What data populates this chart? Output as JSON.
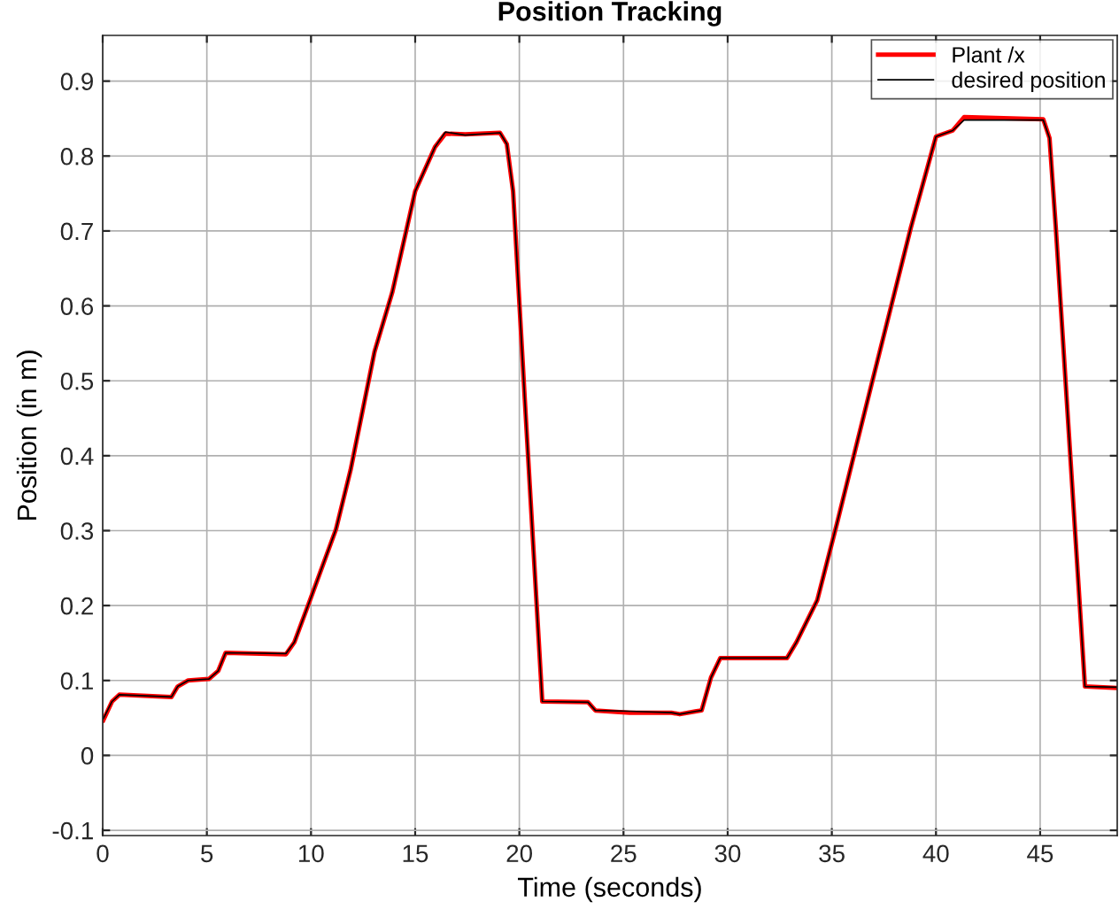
{
  "chart_data": {
    "type": "line",
    "title": "Position Tracking",
    "xlabel": "Time (seconds)",
    "ylabel": "Position (in m)",
    "xlim": [
      0,
      48.7
    ],
    "ylim": [
      -0.107,
      0.961
    ],
    "xticks": [
      0,
      5,
      10,
      15,
      20,
      25,
      30,
      35,
      40,
      45
    ],
    "yticks": [
      {
        "value": -0.1,
        "label": "-0.1"
      },
      0,
      0.1,
      0.2,
      0.3,
      0.4,
      0.5,
      0.6,
      0.7,
      0.8,
      0.9
    ],
    "grid": true,
    "legend": "top right",
    "marker": "none",
    "line_style": "solid",
    "x": [
      0.03,
      0.45,
      0.8,
      3.3,
      3.6,
      4.1,
      5.1,
      5.55,
      5.9,
      8.8,
      9.2,
      9.95,
      11.2,
      11.9,
      13.05,
      13.9,
      15.0,
      15.95,
      16.45,
      17.4,
      19.07,
      19.4,
      19.7,
      20.26,
      21.1,
      23.3,
      23.65,
      25.3,
      27.3,
      27.7,
      28.5,
      28.75,
      29.2,
      29.65,
      32.85,
      33.3,
      34.3,
      35.25,
      36.95,
      38.8,
      40.0,
      40.8,
      41.35,
      45.15,
      45.45,
      45.75,
      47.15,
      48.7
    ],
    "series": [
      {
        "name": "Plant /x",
        "color": "#ff0000",
        "values": [
          0.047,
          0.072,
          0.081,
          0.078,
          0.092,
          0.1,
          0.102,
          0.113,
          0.137,
          0.135,
          0.151,
          0.207,
          0.302,
          0.381,
          0.539,
          0.618,
          0.753,
          0.812,
          0.83,
          0.829,
          0.831,
          0.816,
          0.753,
          0.476,
          0.072,
          0.071,
          0.06,
          0.057,
          0.057,
          0.055,
          0.059,
          0.06,
          0.104,
          0.13,
          0.13,
          0.151,
          0.207,
          0.31,
          0.5,
          0.705,
          0.826,
          0.834,
          0.852,
          0.849,
          0.824,
          0.705,
          0.092,
          0.09
        ]
      },
      {
        "name": "desired position",
        "color": "#000000",
        "values": [
          0.049,
          0.072,
          0.081,
          0.078,
          0.092,
          0.1,
          0.102,
          0.113,
          0.137,
          0.136,
          0.151,
          0.207,
          0.302,
          0.381,
          0.539,
          0.618,
          0.753,
          0.812,
          0.832,
          0.828,
          0.831,
          0.816,
          0.753,
          0.476,
          0.072,
          0.071,
          0.06,
          0.059,
          0.057,
          0.055,
          0.059,
          0.06,
          0.104,
          0.13,
          0.13,
          0.151,
          0.207,
          0.31,
          0.5,
          0.705,
          0.826,
          0.834,
          0.848,
          0.848,
          0.824,
          0.705,
          0.092,
          0.091
        ]
      }
    ]
  }
}
